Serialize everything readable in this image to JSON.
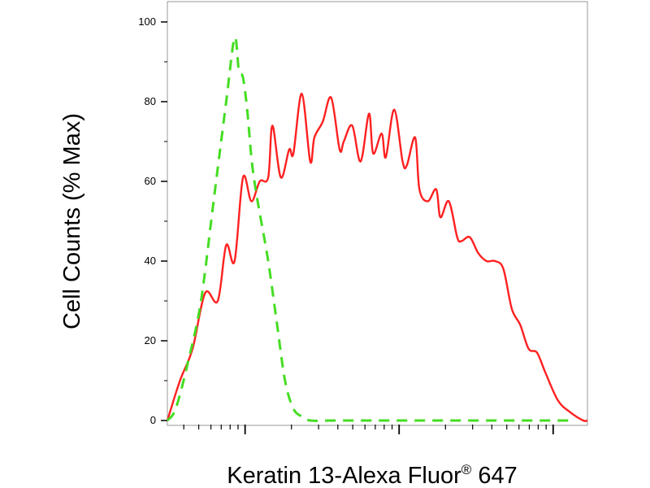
{
  "chart_data": {
    "type": "line",
    "xlabel": "Keratin 13-Alexa Fluor",
    "xlabel_superscript": "®",
    "xlabel_suffix": " 647",
    "ylabel": "Cell Counts (% Max)",
    "ylim": [
      0,
      100
    ],
    "yticks": [
      "0",
      "20",
      "40",
      "60",
      "80",
      "100"
    ],
    "xscale": "log",
    "xlim": [
      0,
      1
    ],
    "grid": false,
    "series": [
      {
        "color": "#ff2020",
        "style": "solid",
        "x": [
          0.0,
          0.03,
          0.06,
          0.09,
          0.12,
          0.14,
          0.16,
          0.18,
          0.2,
          0.22,
          0.24,
          0.25,
          0.27,
          0.29,
          0.3,
          0.32,
          0.34,
          0.35,
          0.37,
          0.39,
          0.41,
          0.42,
          0.44,
          0.46,
          0.48,
          0.49,
          0.51,
          0.52,
          0.54,
          0.56,
          0.57,
          0.59,
          0.6,
          0.62,
          0.64,
          0.65,
          0.67,
          0.69,
          0.7,
          0.72,
          0.74,
          0.76,
          0.78,
          0.8,
          0.82,
          0.84,
          0.86,
          0.88,
          0.9,
          0.93,
          0.96,
          0.99,
          1.0
        ],
        "y": [
          0,
          10,
          18,
          32,
          30,
          44,
          40,
          61,
          55,
          60,
          61,
          74,
          61,
          68,
          67,
          82,
          65,
          71,
          75,
          81,
          68,
          70,
          74,
          65,
          77,
          67,
          72,
          66,
          78,
          65,
          64,
          71,
          58,
          55,
          58,
          51,
          55,
          46,
          45,
          46,
          42,
          40,
          40,
          38,
          28,
          24,
          18,
          17,
          12,
          5,
          2,
          0,
          0
        ]
      },
      {
        "color": "#44dd22",
        "style": "dashed",
        "x": [
          0.0,
          0.02,
          0.05,
          0.08,
          0.11,
          0.14,
          0.16,
          0.17,
          0.18,
          0.19,
          0.2,
          0.21,
          0.22,
          0.24,
          0.26,
          0.28,
          0.3,
          0.32,
          0.34,
          0.4,
          0.5,
          0.6,
          0.7,
          0.8,
          0.9,
          0.97
        ],
        "y": [
          0,
          3,
          15,
          30,
          55,
          80,
          96,
          88,
          86,
          78,
          66,
          58,
          52,
          40,
          25,
          10,
          3,
          1,
          0,
          0,
          0,
          0,
          0,
          0,
          0,
          0
        ]
      }
    ]
  }
}
